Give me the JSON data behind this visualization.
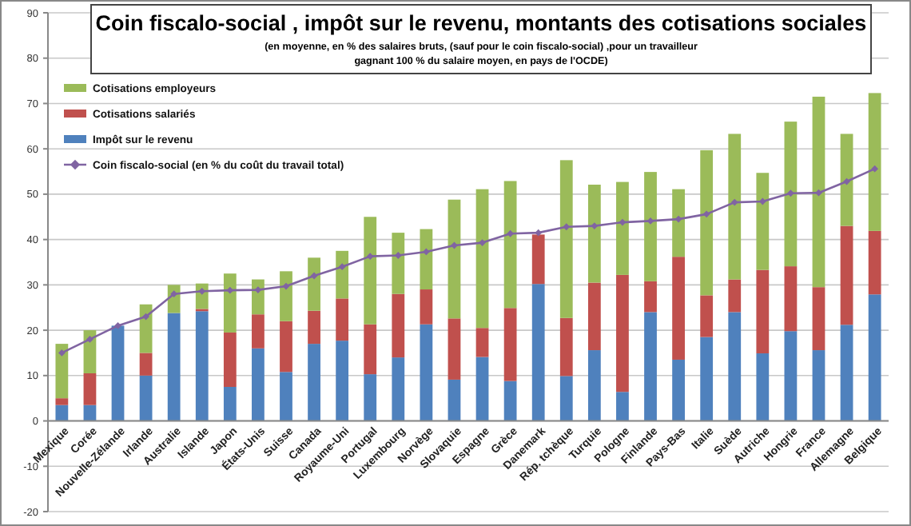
{
  "chart_data": {
    "type": "bar",
    "stacked": true,
    "title": "Coin fiscalo-social , impôt sur le revenu, montants des cotisations sociales",
    "subtitle": "(en moyenne, en % des salaires  bruts, (sauf pour le coin fiscalo-social) ,pour un travailleur gagnant 100 % du salaire moyen, en pays de l'OCDE)",
    "categories": [
      "Mexique",
      "Corée",
      "Nouvelle-Zélande",
      "Irlande",
      "Australie",
      "Islande",
      "Japon",
      "États-Unis",
      "Suisse",
      "Canada",
      "Royaume-Uni",
      "Portugal",
      "Luxembourg",
      "Norvège",
      "Slovaquie",
      "Espagne",
      "Grèce",
      "Danemark",
      "Rép. tchèque",
      "Turquie",
      "Pologne",
      "Finlande",
      "Pays-Bas",
      "Italie",
      "Suède",
      "Autriche",
      "Hongrie",
      "France",
      "Allemagne",
      "Belgique"
    ],
    "series": [
      {
        "name": "Impôt sur le revenu",
        "color": "#4f81bd",
        "values": [
          3.5,
          3.5,
          21,
          10,
          23.8,
          24.2,
          7.5,
          16,
          10.8,
          17,
          17.7,
          10.3,
          14,
          21.3,
          9.1,
          14.1,
          8.8,
          30.2,
          9.9,
          15.6,
          6.4,
          24,
          13.5,
          18.5,
          24,
          14.9,
          19.8,
          15.6,
          21.2,
          27.9
        ]
      },
      {
        "name": "Cotisations salariés",
        "color": "#c0504d",
        "values": [
          1.5,
          7,
          0,
          5,
          0,
          0.5,
          12,
          7.5,
          11.2,
          7.3,
          9.3,
          11,
          14,
          7.7,
          13.5,
          6.4,
          16.1,
          10.9,
          12.8,
          14.9,
          25.8,
          6.8,
          22.7,
          9.2,
          7.2,
          18.4,
          14.3,
          13.9,
          21.8,
          14
        ]
      },
      {
        "name": "Cotisations employeurs",
        "color": "#9bbb59",
        "values": [
          12,
          9.5,
          0,
          10.7,
          6.2,
          5.6,
          13,
          7.7,
          11,
          11.7,
          10.5,
          23.7,
          13.5,
          13.3,
          26.2,
          30.6,
          28,
          0,
          34.8,
          21.6,
          20.5,
          24.1,
          14.9,
          32,
          32.1,
          21.4,
          31.9,
          42,
          20.3,
          30.4
        ]
      },
      {
        "name": "Coin fiscalo-social (en % du coût du travail total)",
        "type": "line",
        "color": "#8064a2",
        "marker": "diamond",
        "values": [
          15,
          18,
          21,
          23,
          28,
          28.6,
          28.8,
          28.9,
          29.7,
          32,
          34,
          36.3,
          36.5,
          37.3,
          38.7,
          39.3,
          41.3,
          41.5,
          42.8,
          43,
          43.8,
          44.1,
          44.5,
          45.6,
          48.2,
          48.4,
          50.2,
          50.3,
          52.8,
          55.6
        ]
      }
    ],
    "ylim": [
      -20,
      90
    ],
    "yticks": [
      -20,
      -10,
      0,
      10,
      20,
      30,
      40,
      50,
      60,
      70,
      80,
      90
    ],
    "grid": "y",
    "legend": "top left"
  }
}
